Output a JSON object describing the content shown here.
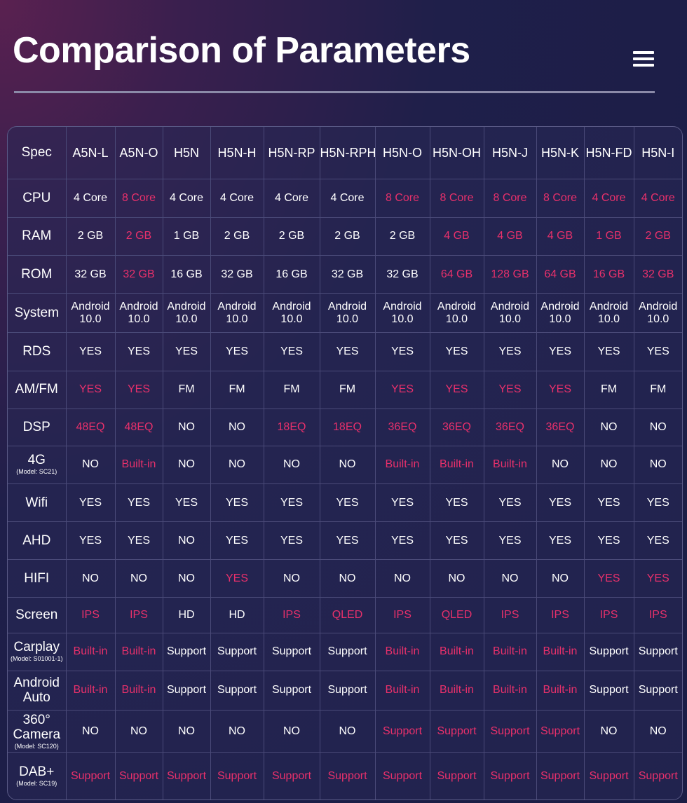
{
  "page": {
    "title": "Comparison of Parameters",
    "menu_icon": "hamburger-menu-icon",
    "accent_color": "#e8306b"
  },
  "table": {
    "corner": "Spec",
    "models": [
      "A5N-L",
      "A5N-O",
      "H5N",
      "H5N-H",
      "H5N-RP",
      "H5N-RPH",
      "H5N-O",
      "H5N-OH",
      "H5N-J",
      "H5N-K",
      "H5N-FD",
      "H5N-I"
    ],
    "rows": [
      {
        "label": "CPU",
        "sub": "",
        "cells": [
          {
            "v": "4 Core",
            "h": false
          },
          {
            "v": "8 Core",
            "h": true
          },
          {
            "v": "4 Core",
            "h": false
          },
          {
            "v": "4 Core",
            "h": false
          },
          {
            "v": "4 Core",
            "h": false
          },
          {
            "v": "4 Core",
            "h": false
          },
          {
            "v": "8 Core",
            "h": true
          },
          {
            "v": "8 Core",
            "h": true
          },
          {
            "v": "8 Core",
            "h": true
          },
          {
            "v": "8 Core",
            "h": true
          },
          {
            "v": "4 Core",
            "h": true
          },
          {
            "v": "4 Core",
            "h": true
          }
        ]
      },
      {
        "label": "RAM",
        "sub": "",
        "cells": [
          {
            "v": "2 GB",
            "h": false
          },
          {
            "v": "2 GB",
            "h": true
          },
          {
            "v": "1 GB",
            "h": false
          },
          {
            "v": "2 GB",
            "h": false
          },
          {
            "v": "2 GB",
            "h": false
          },
          {
            "v": "2 GB",
            "h": false
          },
          {
            "v": "2 GB",
            "h": false
          },
          {
            "v": "4 GB",
            "h": true
          },
          {
            "v": "4 GB",
            "h": true
          },
          {
            "v": "4 GB",
            "h": true
          },
          {
            "v": "1 GB",
            "h": true
          },
          {
            "v": "2 GB",
            "h": true
          }
        ]
      },
      {
        "label": "ROM",
        "sub": "",
        "cells": [
          {
            "v": "32 GB",
            "h": false
          },
          {
            "v": "32 GB",
            "h": true
          },
          {
            "v": "16 GB",
            "h": false
          },
          {
            "v": "32 GB",
            "h": false
          },
          {
            "v": "16 GB",
            "h": false
          },
          {
            "v": "32 GB",
            "h": false
          },
          {
            "v": "32 GB",
            "h": false
          },
          {
            "v": "64 GB",
            "h": true
          },
          {
            "v": "128 GB",
            "h": true
          },
          {
            "v": "64 GB",
            "h": true
          },
          {
            "v": "16 GB",
            "h": true
          },
          {
            "v": "32 GB",
            "h": true
          }
        ]
      },
      {
        "label": "System",
        "sub": "",
        "cells": [
          {
            "v": "Android 10.0",
            "h": false
          },
          {
            "v": "Android 10.0",
            "h": false
          },
          {
            "v": "Android 10.0",
            "h": false
          },
          {
            "v": "Android 10.0",
            "h": false
          },
          {
            "v": "Android 10.0",
            "h": false
          },
          {
            "v": "Android 10.0",
            "h": false
          },
          {
            "v": "Android 10.0",
            "h": false
          },
          {
            "v": "Android 10.0",
            "h": false
          },
          {
            "v": "Android 10.0",
            "h": false
          },
          {
            "v": "Android 10.0",
            "h": false
          },
          {
            "v": "Android 10.0",
            "h": false
          },
          {
            "v": "Android 10.0",
            "h": false
          }
        ]
      },
      {
        "label": "RDS",
        "sub": "",
        "cells": [
          {
            "v": "YES",
            "h": false
          },
          {
            "v": "YES",
            "h": false
          },
          {
            "v": "YES",
            "h": false
          },
          {
            "v": "YES",
            "h": false
          },
          {
            "v": "YES",
            "h": false
          },
          {
            "v": "YES",
            "h": false
          },
          {
            "v": "YES",
            "h": false
          },
          {
            "v": "YES",
            "h": false
          },
          {
            "v": "YES",
            "h": false
          },
          {
            "v": "YES",
            "h": false
          },
          {
            "v": "YES",
            "h": false
          },
          {
            "v": "YES",
            "h": false
          }
        ]
      },
      {
        "label": "AM/FM",
        "sub": "",
        "cells": [
          {
            "v": "YES",
            "h": true
          },
          {
            "v": "YES",
            "h": true
          },
          {
            "v": "FM",
            "h": false
          },
          {
            "v": "FM",
            "h": false
          },
          {
            "v": "FM",
            "h": false
          },
          {
            "v": "FM",
            "h": false
          },
          {
            "v": "YES",
            "h": true
          },
          {
            "v": "YES",
            "h": true
          },
          {
            "v": "YES",
            "h": true
          },
          {
            "v": "YES",
            "h": true
          },
          {
            "v": "FM",
            "h": false
          },
          {
            "v": "FM",
            "h": false
          }
        ]
      },
      {
        "label": "DSP",
        "sub": "",
        "cells": [
          {
            "v": "48EQ",
            "h": true
          },
          {
            "v": "48EQ",
            "h": true
          },
          {
            "v": "NO",
            "h": false
          },
          {
            "v": "NO",
            "h": false
          },
          {
            "v": "18EQ",
            "h": true
          },
          {
            "v": "18EQ",
            "h": true
          },
          {
            "v": "36EQ",
            "h": true
          },
          {
            "v": "36EQ",
            "h": true
          },
          {
            "v": "36EQ",
            "h": true
          },
          {
            "v": "36EQ",
            "h": true
          },
          {
            "v": "NO",
            "h": false
          },
          {
            "v": "NO",
            "h": false
          }
        ]
      },
      {
        "label": "4G",
        "sub": "(Model: SC21)",
        "cells": [
          {
            "v": "NO",
            "h": false
          },
          {
            "v": "Built-in",
            "h": true
          },
          {
            "v": "NO",
            "h": false
          },
          {
            "v": "NO",
            "h": false
          },
          {
            "v": "NO",
            "h": false
          },
          {
            "v": "NO",
            "h": false
          },
          {
            "v": "Built-in",
            "h": true
          },
          {
            "v": "Built-in",
            "h": true
          },
          {
            "v": "Built-in",
            "h": true
          },
          {
            "v": "NO",
            "h": false
          },
          {
            "v": "NO",
            "h": false
          },
          {
            "v": "NO",
            "h": false
          }
        ]
      },
      {
        "label": "Wifi",
        "sub": "",
        "cells": [
          {
            "v": "YES",
            "h": false
          },
          {
            "v": "YES",
            "h": false
          },
          {
            "v": "YES",
            "h": false
          },
          {
            "v": "YES",
            "h": false
          },
          {
            "v": "YES",
            "h": false
          },
          {
            "v": "YES",
            "h": false
          },
          {
            "v": "YES",
            "h": false
          },
          {
            "v": "YES",
            "h": false
          },
          {
            "v": "YES",
            "h": false
          },
          {
            "v": "YES",
            "h": false
          },
          {
            "v": "YES",
            "h": false
          },
          {
            "v": "YES",
            "h": false
          }
        ]
      },
      {
        "label": "AHD",
        "sub": "",
        "cells": [
          {
            "v": "YES",
            "h": false
          },
          {
            "v": "YES",
            "h": false
          },
          {
            "v": "NO",
            "h": false
          },
          {
            "v": "YES",
            "h": false
          },
          {
            "v": "YES",
            "h": false
          },
          {
            "v": "YES",
            "h": false
          },
          {
            "v": "YES",
            "h": false
          },
          {
            "v": "YES",
            "h": false
          },
          {
            "v": "YES",
            "h": false
          },
          {
            "v": "YES",
            "h": false
          },
          {
            "v": "YES",
            "h": false
          },
          {
            "v": "YES",
            "h": false
          }
        ]
      },
      {
        "label": "HIFI",
        "sub": "",
        "cells": [
          {
            "v": "NO",
            "h": false
          },
          {
            "v": "NO",
            "h": false
          },
          {
            "v": "NO",
            "h": false
          },
          {
            "v": "YES",
            "h": true
          },
          {
            "v": "NO",
            "h": false
          },
          {
            "v": "NO",
            "h": false
          },
          {
            "v": "NO",
            "h": false
          },
          {
            "v": "NO",
            "h": false
          },
          {
            "v": "NO",
            "h": false
          },
          {
            "v": "NO",
            "h": false
          },
          {
            "v": "YES",
            "h": true
          },
          {
            "v": "YES",
            "h": true
          }
        ]
      },
      {
        "label": "Screen",
        "sub": "",
        "cells": [
          {
            "v": "IPS",
            "h": true
          },
          {
            "v": "IPS",
            "h": true
          },
          {
            "v": "HD",
            "h": false
          },
          {
            "v": "HD",
            "h": false
          },
          {
            "v": "IPS",
            "h": true
          },
          {
            "v": "QLED",
            "h": true
          },
          {
            "v": "IPS",
            "h": true
          },
          {
            "v": "QLED",
            "h": true
          },
          {
            "v": "IPS",
            "h": true
          },
          {
            "v": "IPS",
            "h": true
          },
          {
            "v": "IPS",
            "h": true
          },
          {
            "v": "IPS",
            "h": true
          }
        ]
      },
      {
        "label": "Carplay",
        "sub": "(Model: S01001-1)",
        "cells": [
          {
            "v": "Built-in",
            "h": true
          },
          {
            "v": "Built-in",
            "h": true
          },
          {
            "v": "Support",
            "h": false
          },
          {
            "v": "Support",
            "h": false
          },
          {
            "v": "Support",
            "h": false
          },
          {
            "v": "Support",
            "h": false
          },
          {
            "v": "Built-in",
            "h": true
          },
          {
            "v": "Built-in",
            "h": true
          },
          {
            "v": "Built-in",
            "h": true
          },
          {
            "v": "Built-in",
            "h": true
          },
          {
            "v": "Support",
            "h": false
          },
          {
            "v": "Support",
            "h": false
          }
        ]
      },
      {
        "label": "Android Auto",
        "sub": "",
        "cells": [
          {
            "v": "Built-in",
            "h": true
          },
          {
            "v": "Built-in",
            "h": true
          },
          {
            "v": "Support",
            "h": false
          },
          {
            "v": "Support",
            "h": false
          },
          {
            "v": "Support",
            "h": false
          },
          {
            "v": "Support",
            "h": false
          },
          {
            "v": "Built-in",
            "h": true
          },
          {
            "v": "Built-in",
            "h": true
          },
          {
            "v": "Built-in",
            "h": true
          },
          {
            "v": "Built-in",
            "h": true
          },
          {
            "v": "Support",
            "h": false
          },
          {
            "v": "Support",
            "h": false
          }
        ]
      },
      {
        "label": "360° Camera",
        "sub": "(Model: SC120)",
        "cells": [
          {
            "v": "NO",
            "h": false
          },
          {
            "v": "NO",
            "h": false
          },
          {
            "v": "NO",
            "h": false
          },
          {
            "v": "NO",
            "h": false
          },
          {
            "v": "NO",
            "h": false
          },
          {
            "v": "NO",
            "h": false
          },
          {
            "v": "Support",
            "h": true
          },
          {
            "v": "Support",
            "h": true
          },
          {
            "v": "Support",
            "h": true
          },
          {
            "v": "Support",
            "h": true
          },
          {
            "v": "NO",
            "h": false
          },
          {
            "v": "NO",
            "h": false
          }
        ]
      },
      {
        "label": "DAB+",
        "sub": "(Model: SC19)",
        "cells": [
          {
            "v": "Support",
            "h": true
          },
          {
            "v": "Support",
            "h": true
          },
          {
            "v": "Support",
            "h": true
          },
          {
            "v": "Support",
            "h": true
          },
          {
            "v": "Support",
            "h": true
          },
          {
            "v": "Support",
            "h": true
          },
          {
            "v": "Support",
            "h": true
          },
          {
            "v": "Support",
            "h": true
          },
          {
            "v": "Support",
            "h": true
          },
          {
            "v": "Support",
            "h": true
          },
          {
            "v": "Support",
            "h": true
          },
          {
            "v": "Support",
            "h": true
          }
        ]
      }
    ]
  }
}
